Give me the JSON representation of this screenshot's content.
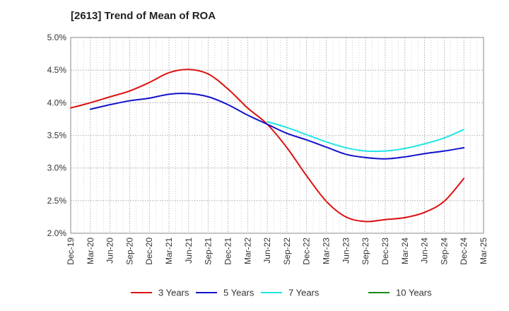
{
  "chart_data": {
    "type": "line",
    "title": "[2613]  Trend of Mean of ROA",
    "xlabel": "",
    "ylabel": "",
    "x": [
      "Dec-19",
      "Mar-20",
      "Jun-20",
      "Sep-20",
      "Dec-20",
      "Mar-21",
      "Jun-21",
      "Sep-21",
      "Dec-21",
      "Mar-22",
      "Jun-22",
      "Sep-22",
      "Dec-22",
      "Mar-23",
      "Jun-23",
      "Sep-23",
      "Dec-23",
      "Mar-24",
      "Jun-24",
      "Sep-24",
      "Dec-24",
      "Mar-25"
    ],
    "y_ticks": [
      "2.0%",
      "2.5%",
      "3.0%",
      "3.5%",
      "4.0%",
      "4.5%",
      "5.0%"
    ],
    "ylim": [
      2.0,
      5.0
    ],
    "grid": true,
    "legend_position": "bottom",
    "series": [
      {
        "name": "3 Years",
        "color": "#dd1111",
        "values": [
          3.92,
          4.0,
          4.09,
          4.18,
          4.31,
          4.46,
          4.51,
          4.44,
          4.21,
          3.92,
          3.67,
          3.31,
          2.88,
          2.49,
          2.25,
          2.18,
          2.21,
          2.24,
          2.32,
          2.49,
          2.84,
          null
        ]
      },
      {
        "name": "5 Years",
        "color": "#1111cc",
        "values": [
          null,
          3.9,
          3.97,
          4.03,
          4.07,
          4.13,
          4.14,
          4.09,
          3.97,
          3.81,
          3.67,
          3.53,
          3.43,
          3.32,
          3.21,
          3.16,
          3.14,
          3.17,
          3.22,
          3.26,
          3.31,
          null
        ]
      },
      {
        "name": "7 Years",
        "color": "#22e5e5",
        "values": [
          null,
          null,
          null,
          null,
          null,
          null,
          null,
          null,
          null,
          null,
          3.71,
          3.62,
          3.51,
          3.4,
          3.31,
          3.26,
          3.26,
          3.3,
          3.37,
          3.46,
          3.59,
          null
        ]
      },
      {
        "name": "10 Years",
        "color": "#1a8a1a",
        "values": [
          null,
          null,
          null,
          null,
          null,
          null,
          null,
          null,
          null,
          null,
          null,
          null,
          null,
          null,
          null,
          null,
          null,
          null,
          null,
          null,
          null,
          null
        ]
      }
    ]
  }
}
